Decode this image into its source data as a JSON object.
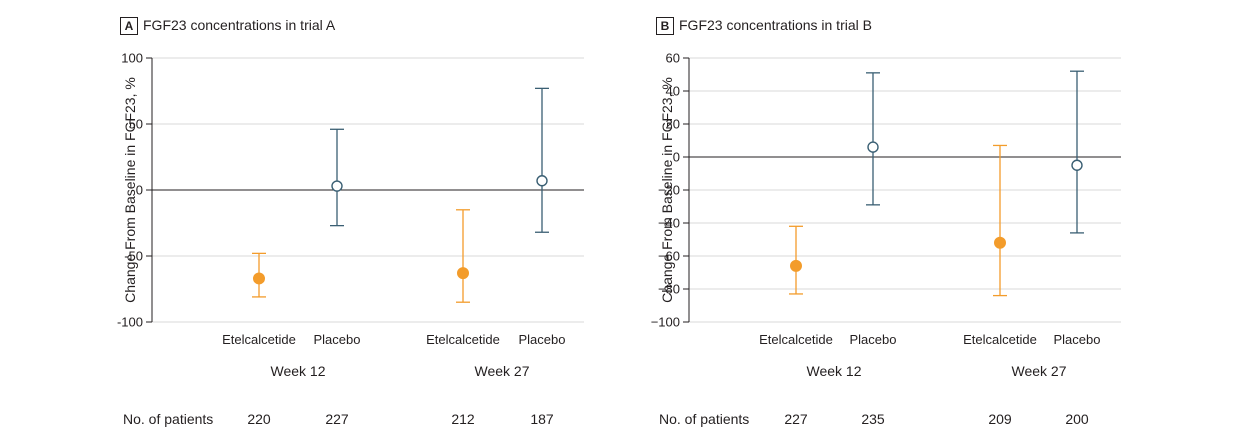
{
  "colors": {
    "etelcalcetide": "#f39c2b",
    "placebo": "#3a5f73",
    "grid": "#d9d9d9",
    "axis": "#231f20"
  },
  "row_label": "No. of patients",
  "chart_data": [
    {
      "type": "scatter",
      "panel": "A",
      "title": "FGF23 concentrations in trial A",
      "ylabel": "Change From Baseline in FGF23, %",
      "ylim": [
        -100,
        100
      ],
      "yticks": [
        100,
        50,
        0,
        -50,
        -100
      ],
      "ytick_labels": [
        "100",
        "50",
        "0",
        "-50",
        "-100"
      ],
      "reference_line": 0,
      "grid": "horizontal",
      "groups": [
        {
          "week": "Week 12",
          "points": [
            {
              "label": "Etelcalcetide",
              "series": "etelcalcetide",
              "y": -67,
              "low": -81,
              "high": -48,
              "n": "220"
            },
            {
              "label": "Placebo",
              "series": "placebo",
              "y": 3,
              "low": -27,
              "high": 46,
              "n": "227"
            }
          ]
        },
        {
          "week": "Week 27",
          "points": [
            {
              "label": "Etelcalcetide",
              "series": "etelcalcetide",
              "y": -63,
              "low": -85,
              "high": -15,
              "n": "212"
            },
            {
              "label": "Placebo",
              "series": "placebo",
              "y": 7,
              "low": -32,
              "high": 77,
              "n": "187"
            }
          ]
        }
      ]
    },
    {
      "type": "scatter",
      "panel": "B",
      "title": "FGF23 concentrations in trial B",
      "ylabel": "Change From Baseline in FGF23, %",
      "ylim": [
        -100,
        60
      ],
      "yticks": [
        60,
        40,
        20,
        0,
        -20,
        -40,
        -60,
        -80,
        -100
      ],
      "ytick_labels": [
        "60",
        "40",
        "20",
        "0",
        "−20",
        "−40",
        "−60",
        "−80",
        "−100"
      ],
      "reference_line": 0,
      "grid": "horizontal",
      "groups": [
        {
          "week": "Week 12",
          "points": [
            {
              "label": "Etelcalcetide",
              "series": "etelcalcetide",
              "y": -66,
              "low": -83,
              "high": -42,
              "n": "227"
            },
            {
              "label": "Placebo",
              "series": "placebo",
              "y": 6,
              "low": -29,
              "high": 51,
              "n": "235"
            }
          ]
        },
        {
          "week": "Week 27",
          "points": [
            {
              "label": "Etelcalcetide",
              "series": "etelcalcetide",
              "y": -52,
              "low": -84,
              "high": 7,
              "n": "209"
            },
            {
              "label": "Placebo",
              "series": "placebo",
              "y": -5,
              "low": -46,
              "high": 52,
              "n": "200"
            }
          ]
        }
      ]
    }
  ]
}
